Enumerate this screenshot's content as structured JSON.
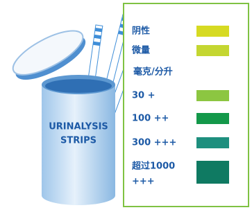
{
  "jar_label": [
    "URINALYSIS",
    "STRIPS"
  ],
  "legend": {
    "unit": "毫克/分升",
    "items": [
      {
        "lines": [
          "阴性"
        ],
        "color": "#d6da22"
      },
      {
        "lines": [
          "微量"
        ],
        "color": "#c4d631"
      },
      {
        "lines": [
          "30 +"
        ],
        "color": "#8cc641"
      },
      {
        "lines": [
          "100 ++"
        ],
        "color": "#13984a"
      },
      {
        "lines": [
          "300 +++"
        ],
        "color": "#1e8f7e"
      },
      {
        "lines": [
          "超过1000",
          "+++"
        ],
        "color": "#0f7a62"
      }
    ]
  }
}
